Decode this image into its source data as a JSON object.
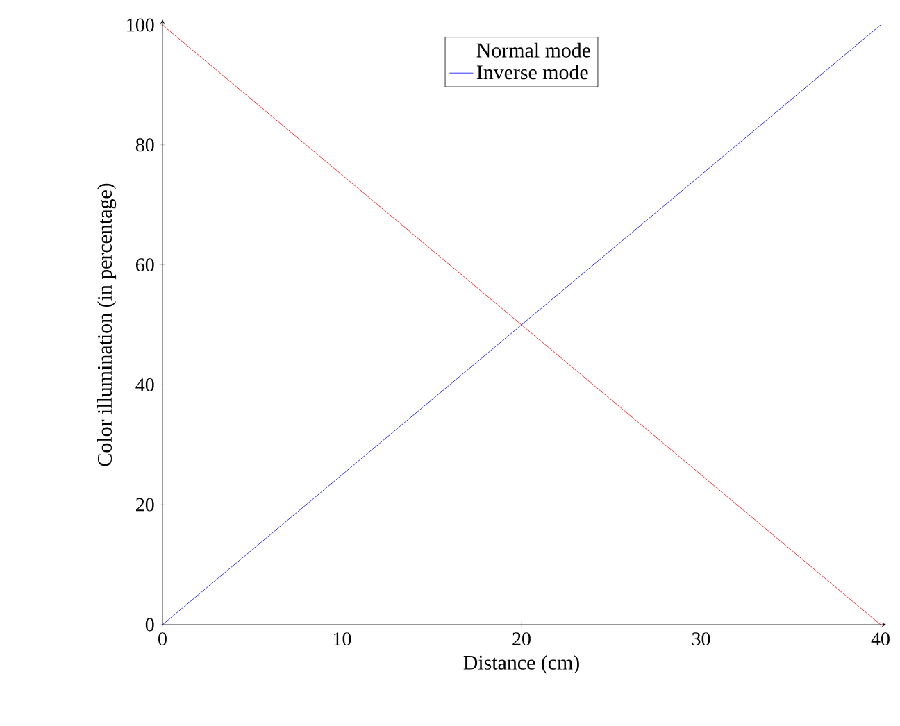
{
  "chart_data": {
    "type": "line",
    "xlabel": "Distance (cm)",
    "ylabel": "Color illumination (in percentage)",
    "x": [
      0,
      40
    ],
    "xlim": [
      0,
      40
    ],
    "ylim": [
      0,
      100
    ],
    "xticks": [
      0,
      10,
      20,
      30,
      40
    ],
    "yticks": [
      0,
      20,
      40,
      60,
      80,
      100
    ],
    "legend": "top",
    "series": [
      {
        "name": "Normal mode",
        "color": "#ff0000",
        "values": [
          100,
          0
        ]
      },
      {
        "name": "Inverse mode",
        "color": "#0000ff",
        "values": [
          0,
          100
        ]
      }
    ]
  }
}
